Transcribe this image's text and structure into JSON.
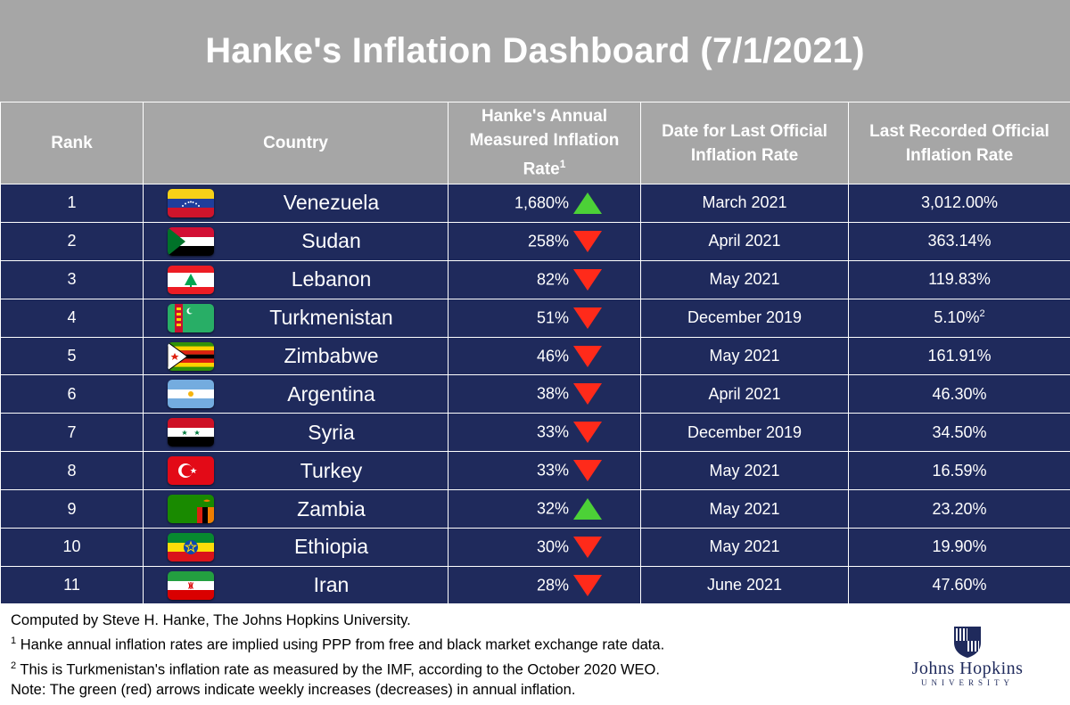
{
  "title": "Hanke's Inflation Dashboard (7/1/2021)",
  "headers": {
    "rank": "Rank",
    "country": "Country",
    "hanke_line1": "Hanke's Annual",
    "hanke_line2": "Measured Inflation",
    "hanke_line3": "Rate",
    "hanke_sup": "1",
    "date_line1": "Date for Last Official",
    "date_line2": "Inflation Rate",
    "official_line1": "Last Recorded Official",
    "official_line2": "Inflation Rate"
  },
  "colors": {
    "header_bg": "#a6a6a6",
    "row_bg": "#1f2a5c",
    "arrow_up": "#4cd137",
    "arrow_down": "#ff2a1a"
  },
  "chart_data": {
    "type": "table",
    "title": "Hanke's Inflation Dashboard (7/1/2021)",
    "columns": [
      "Rank",
      "Country",
      "Hanke's Annual Measured Inflation Rate",
      "Date for Last Official Inflation Rate",
      "Last Recorded Official Inflation Rate"
    ],
    "rows": [
      {
        "rank": "1",
        "country": "Venezuela",
        "flag": "venezuela-flag",
        "hanke": "1,680%",
        "direction": "up",
        "date": "March 2021",
        "official": "3,012.00%",
        "official_sup": ""
      },
      {
        "rank": "2",
        "country": "Sudan",
        "flag": "sudan-flag",
        "hanke": "258%",
        "direction": "down",
        "date": "April 2021",
        "official": "363.14%",
        "official_sup": ""
      },
      {
        "rank": "3",
        "country": "Lebanon",
        "flag": "lebanon-flag",
        "hanke": "82%",
        "direction": "down",
        "date": "May 2021",
        "official": "119.83%",
        "official_sup": ""
      },
      {
        "rank": "4",
        "country": "Turkmenistan",
        "flag": "turkmenistan-flag",
        "hanke": "51%",
        "direction": "down",
        "date": "December 2019",
        "official": "5.10%",
        "official_sup": "2"
      },
      {
        "rank": "5",
        "country": "Zimbabwe",
        "flag": "zimbabwe-flag",
        "hanke": "46%",
        "direction": "down",
        "date": "May 2021",
        "official": "161.91%",
        "official_sup": ""
      },
      {
        "rank": "6",
        "country": "Argentina",
        "flag": "argentina-flag",
        "hanke": "38%",
        "direction": "down",
        "date": "April 2021",
        "official": "46.30%",
        "official_sup": ""
      },
      {
        "rank": "7",
        "country": "Syria",
        "flag": "syria-flag",
        "hanke": "33%",
        "direction": "down",
        "date": "December 2019",
        "official": "34.50%",
        "official_sup": ""
      },
      {
        "rank": "8",
        "country": "Turkey",
        "flag": "turkey-flag",
        "hanke": "33%",
        "direction": "down",
        "date": "May 2021",
        "official": "16.59%",
        "official_sup": ""
      },
      {
        "rank": "9",
        "country": "Zambia",
        "flag": "zambia-flag",
        "hanke": "32%",
        "direction": "up",
        "date": "May 2021",
        "official": "23.20%",
        "official_sup": ""
      },
      {
        "rank": "10",
        "country": "Ethiopia",
        "flag": "ethiopia-flag",
        "hanke": "30%",
        "direction": "down",
        "date": "May 2021",
        "official": "19.90%",
        "official_sup": ""
      },
      {
        "rank": "11",
        "country": "Iran",
        "flag": "iran-flag",
        "hanke": "28%",
        "direction": "down",
        "date": "June 2021",
        "official": "47.60%",
        "official_sup": ""
      }
    ]
  },
  "footer": {
    "note1": "Computed by Steve H. Hanke, The Johns Hopkins University.",
    "note2_sup": "1",
    "note2": " Hanke annual inflation rates are implied using PPP from free and black market exchange rate data.",
    "note3_sup": "2",
    "note3": " This is Turkmenistan's inflation rate as measured by the IMF, according to the October 2020 WEO.",
    "note4": "Note: The green (red) arrows indicate weekly increases (decreases) in annual inflation.",
    "logo_name": "Johns Hopkins",
    "logo_sub": "UNIVERSITY"
  }
}
